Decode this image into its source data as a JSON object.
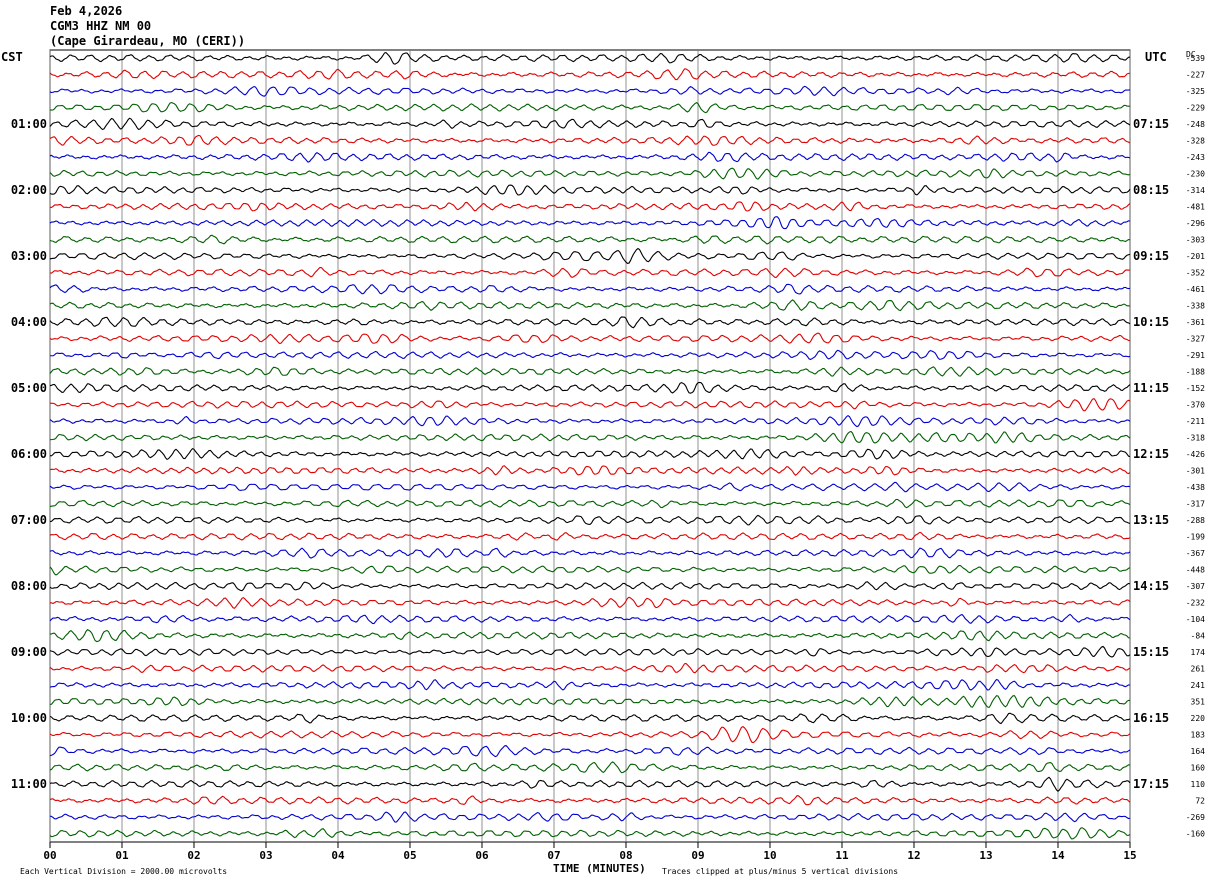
{
  "header": {
    "date": "Feb 4,2026",
    "station": "CGM3 HHZ NM 00",
    "location": "(Cape Girardeau, MO (CERI))"
  },
  "left_axis_label": "CST",
  "right_axis_label": "UTC",
  "dc_label": "DC",
  "footer": {
    "scale_note": "Each Vertical Division = 2000.00 microvolts",
    "xlabel": "TIME (MINUTES)",
    "clip_note": "Traces clipped at plus/minus 5 vertical divisions"
  },
  "chart_data": {
    "type": "line",
    "title": "",
    "xlabel": "TIME (MINUTES)",
    "xlim": [
      0,
      15
    ],
    "x_ticks": [
      "00",
      "01",
      "02",
      "03",
      "04",
      "05",
      "06",
      "07",
      "08",
      "09",
      "10",
      "11",
      "12",
      "13",
      "14",
      "15"
    ],
    "trace_colors": [
      "#000000",
      "#e00000",
      "#0000d0",
      "#006000"
    ],
    "left_hour_labels": [
      "01:00",
      "02:00",
      "03:00",
      "04:00",
      "05:00",
      "06:00",
      "07:00",
      "08:00",
      "09:00",
      "10:00",
      "11:00"
    ],
    "right_hour_labels": [
      "07:15",
      "08:15",
      "09:15",
      "10:15",
      "11:15",
      "12:15",
      "13:15",
      "14:15",
      "15:15",
      "16:15",
      "17:15"
    ],
    "dc_offsets": [
      "-539",
      "-227",
      "-325",
      "-229",
      "-248",
      "-328",
      "-243",
      "-230",
      "-314",
      "-481",
      "-296",
      "-303",
      "-201",
      "-352",
      "-461",
      "-338",
      "-361",
      "-327",
      "-291",
      "-188",
      "-152",
      "-370",
      "-211",
      "-318",
      "-426",
      "-301",
      "-438",
      "-317",
      "-288",
      "-199",
      "-367",
      "-448",
      "-307",
      "-232",
      "-104",
      "-84",
      "174",
      "261",
      "241",
      "351",
      "220",
      "183",
      "164",
      "160",
      "110",
      "72",
      "-269",
      "-160"
    ]
  }
}
